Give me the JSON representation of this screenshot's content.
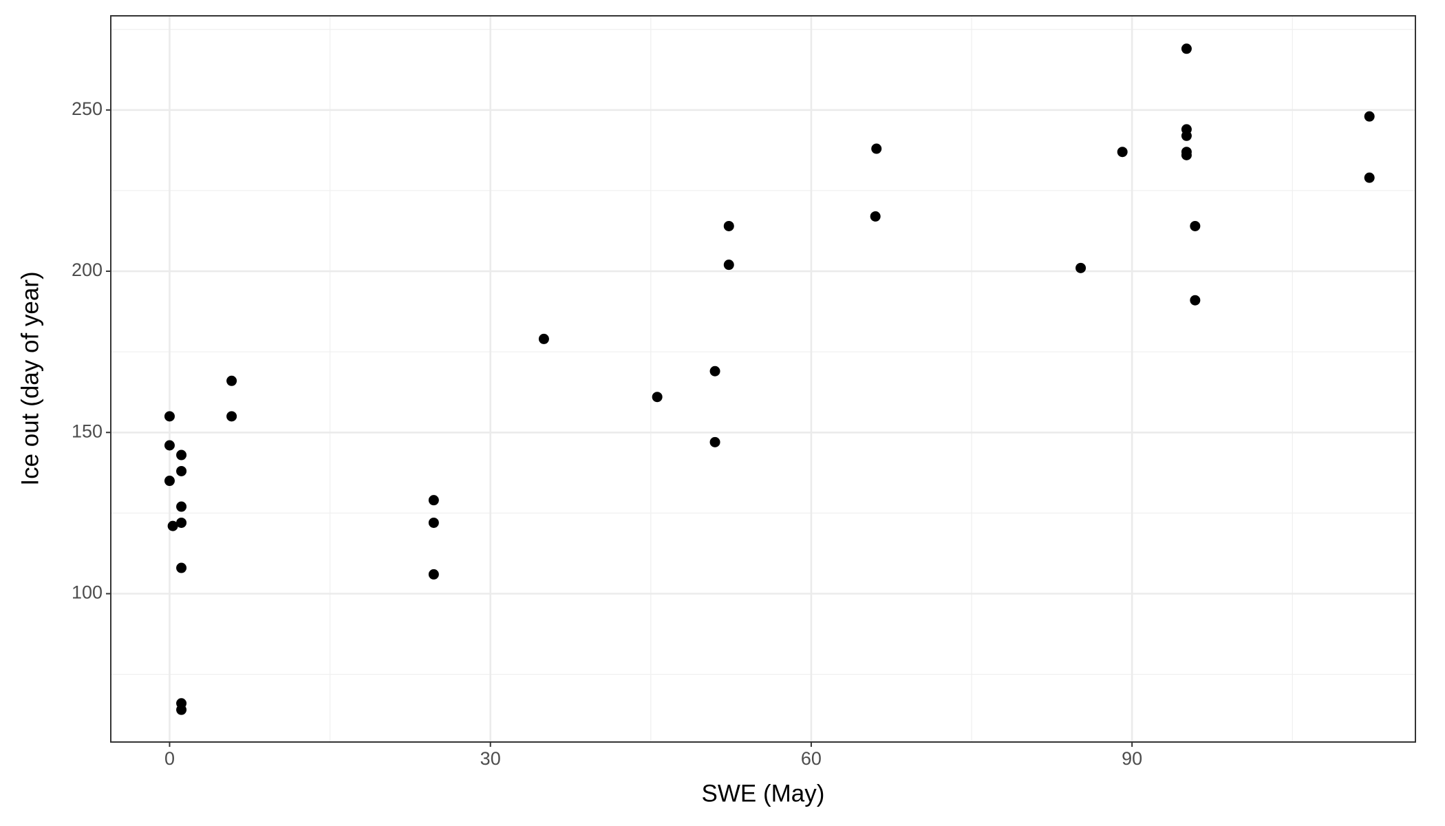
{
  "chart_data": {
    "type": "scatter",
    "x_label": "SWE (May)",
    "y_label": "Ice out (day of year)",
    "x": [
      0,
      0,
      0,
      0.3,
      1.1,
      1.1,
      1.1,
      1.1,
      1.1,
      1.1,
      1.1,
      5.8,
      5.8,
      24.7,
      24.7,
      24.7,
      35,
      45.6,
      51,
      51,
      52.3,
      52.3,
      66.1,
      66,
      85.2,
      89.1,
      95.1,
      95.1,
      95.1,
      95.1,
      95.1,
      95.9,
      95.9,
      112.2,
      112.2
    ],
    "values": [
      155,
      146,
      135,
      121,
      143,
      138,
      127,
      122,
      108,
      66,
      64,
      166,
      155,
      129,
      122,
      106,
      179,
      161,
      169,
      147,
      214,
      202,
      238,
      217,
      201,
      237,
      269,
      244,
      242,
      237,
      236,
      214,
      191,
      248,
      229
    ],
    "color": "#000000",
    "xlim": [
      -5.5,
      116.5
    ],
    "xticks": [
      0,
      30,
      60,
      90
    ],
    "ylim": [
      54,
      279.2
    ],
    "yticks": [
      100,
      150,
      200,
      250
    ],
    "grid": true
  }
}
